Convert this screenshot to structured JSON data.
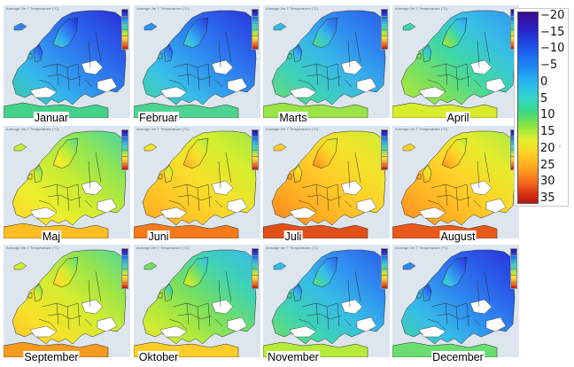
{
  "panel_header": "Average 2m T Temperature (°C)",
  "months": [
    {
      "label": "Januar",
      "gradient": [
        "#2a2fd8",
        "#2a5ae8",
        "#2f86f0",
        "#36b8ec",
        "#3ecfa0"
      ],
      "africa": "#44d28a"
    },
    {
      "label": "Februar",
      "gradient": [
        "#2a34da",
        "#2b62ea",
        "#3090f0",
        "#38c0e8",
        "#46d6a0"
      ],
      "africa": "#4ed490"
    },
    {
      "label": "Marts",
      "gradient": [
        "#2b5ae8",
        "#2f86f0",
        "#38b6ea",
        "#3fd2b8",
        "#6edc6a"
      ],
      "africa": "#9ae448"
    },
    {
      "label": "April",
      "gradient": [
        "#3096ee",
        "#38bee6",
        "#3dd6aa",
        "#7ae05e",
        "#b8ea38"
      ],
      "africa": "#d9ec2c"
    },
    {
      "label": "Maj",
      "gradient": [
        "#46d6a4",
        "#8ee456",
        "#c8ec32",
        "#eeee2c",
        "#ffd428"
      ],
      "africa": "#ffbe24"
    },
    {
      "label": "Juni",
      "gradient": [
        "#9ee64a",
        "#d6ee2e",
        "#f6e02a",
        "#ffc626",
        "#ffa620"
      ],
      "africa": "#f47a1c"
    },
    {
      "label": "Juli",
      "gradient": [
        "#c8ec34",
        "#f2e42a",
        "#ffcc28",
        "#ffac22",
        "#f8821e"
      ],
      "africa": "#e2501a"
    },
    {
      "label": "August",
      "gradient": [
        "#aee844",
        "#e6ec2c",
        "#ffd228",
        "#ffb224",
        "#fa8a1e"
      ],
      "africa": "#e85a1a"
    },
    {
      "label": "September",
      "gradient": [
        "#52d898",
        "#98e44c",
        "#d4ec30",
        "#f6e22a",
        "#ffc426"
      ],
      "africa": "#f69a20"
    },
    {
      "label": "Oktober",
      "gradient": [
        "#38b8ea",
        "#3ed2b6",
        "#72de64",
        "#b6ea3a",
        "#e8ea2c"
      ],
      "africa": "#ffcc28"
    },
    {
      "label": "November",
      "gradient": [
        "#2b5ee8",
        "#2f8cf0",
        "#36bce8",
        "#3ed4b0",
        "#78de62"
      ],
      "africa": "#b8ea3a"
    },
    {
      "label": "December",
      "gradient": [
        "#2a32d8",
        "#2b5cea",
        "#2f8af0",
        "#36bcea",
        "#40d2a8"
      ],
      "africa": "#6ade70"
    }
  ],
  "legend": {
    "ticks": [
      "−20",
      "−15",
      "−10",
      "−5",
      "0",
      "5",
      "10",
      "15",
      "20",
      "25",
      "30",
      "35"
    ],
    "extra_mark": "‵"
  }
}
